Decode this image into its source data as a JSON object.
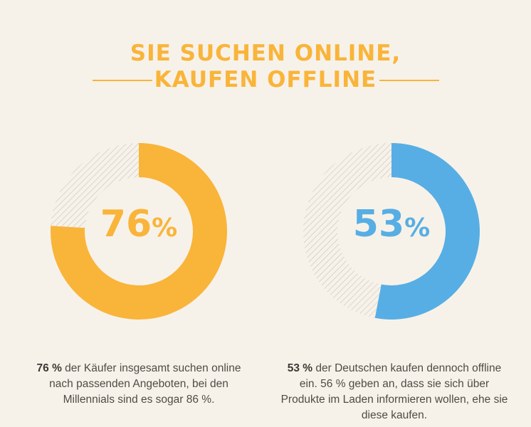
{
  "title": {
    "line1": "SIE SUCHEN ONLINE,",
    "line2": "KAUFEN OFFLINE"
  },
  "chart_data": [
    {
      "type": "pie",
      "style": "donut",
      "values": [
        76,
        24
      ],
      "value_label": "76",
      "value_suffix": "%",
      "caption_lead": "76 %",
      "caption_rest": " der Käufer insgesamt suchen online nach passenden Angeboten, bei den Millennials sind es sogar 86 %.",
      "color": "#f9b43a"
    },
    {
      "type": "pie",
      "style": "donut",
      "values": [
        53,
        47
      ],
      "value_label": "53",
      "value_suffix": "%",
      "caption_lead": "53 %",
      "caption_rest": " der Deutschen kaufen dennoch offline ein. 56 % geben an, dass sie sich über Produkte im Laden informieren wollen, ehe sie diese kaufen.",
      "color": "#57aee4"
    }
  ],
  "colors": {
    "background": "#f7f2e9",
    "title": "#f9b43a",
    "caption_text": "#514a47",
    "remainder_hatch": "#bfb9b2"
  },
  "icons": {
    "hatch_pattern": "diagonal-hatch"
  }
}
